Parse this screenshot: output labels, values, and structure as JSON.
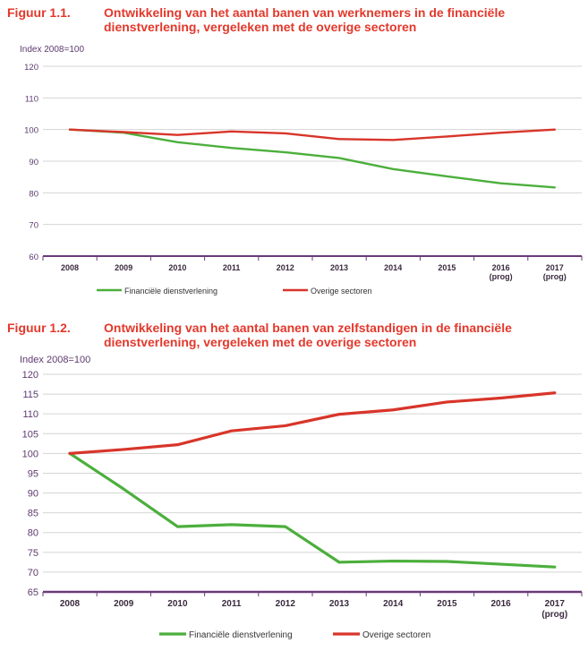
{
  "charts": [
    {
      "figure_number": "Figuur 1.1.",
      "title_line1": "Ontwikkeling van het aantal banen van werknemers in de financiële",
      "title_line2": "dienstverlening, vergeleken met de overige sectoren",
      "ylabel": "Index 2008=100"
    },
    {
      "figure_number": "Figuur 1.2.",
      "title_line1": "Ontwikkeling van het aantal banen van zelfstandigen in de financiële",
      "title_line2": "dienstverlening, vergeleken met de overige sectoren",
      "ylabel": "Index 2008=100"
    }
  ],
  "colors": {
    "title": "#e3382b",
    "axis": "#6b3a7a",
    "green": "#4caf3c",
    "red": "#d8352a"
  },
  "chart_data": [
    {
      "type": "line",
      "title": "Ontwikkeling van het aantal banen van werknemers in de financiële dienstverlening, vergeleken met de overige sectoren",
      "ylabel": "Index 2008=100",
      "categories": [
        "2008",
        "2009",
        "2010",
        "2011",
        "2012",
        "2013",
        "2014",
        "2015",
        "2016\n(prog)",
        "2017\n(prog)"
      ],
      "yticks": [
        60,
        70,
        80,
        90,
        100,
        110,
        120
      ],
      "ylim": [
        60,
        120
      ],
      "grid": true,
      "legend": "bottom",
      "series": [
        {
          "name": "Financiële dienstverlening",
          "color": "#4caf3c",
          "values": [
            100,
            99,
            96,
            94.2,
            92.8,
            91,
            87.5,
            85.2,
            83,
            81.7
          ]
        },
        {
          "name": "Overige sectoren",
          "color": "#d8352a",
          "values": [
            100,
            99.2,
            98.3,
            99.4,
            98.8,
            97,
            96.7,
            97.8,
            99,
            100
          ]
        }
      ]
    },
    {
      "type": "line",
      "title": "Ontwikkeling van het aantal banen van zelfstandigen in de financiële dienstverlening, vergeleken met de overige sectoren",
      "ylabel": "Index 2008=100",
      "categories": [
        "2008",
        "2009",
        "2010",
        "2011",
        "2012",
        "2013",
        "2014",
        "2015",
        "2016",
        "2017\n(prog)"
      ],
      "yticks": [
        65,
        70,
        75,
        80,
        85,
        90,
        95,
        100,
        105,
        110,
        115,
        120
      ],
      "ylim": [
        65,
        120
      ],
      "grid": true,
      "legend": "bottom",
      "series": [
        {
          "name": "Financiële dienstverlening",
          "color": "#4caf3c",
          "values": [
            100,
            91,
            81.5,
            82,
            81.5,
            72.5,
            72.8,
            72.7,
            72,
            71.3
          ]
        },
        {
          "name": "Overige sectoren",
          "color": "#d8352a",
          "values": [
            100,
            101,
            102.2,
            105.7,
            107,
            109.9,
            111,
            113,
            114,
            115.3
          ]
        }
      ]
    }
  ]
}
